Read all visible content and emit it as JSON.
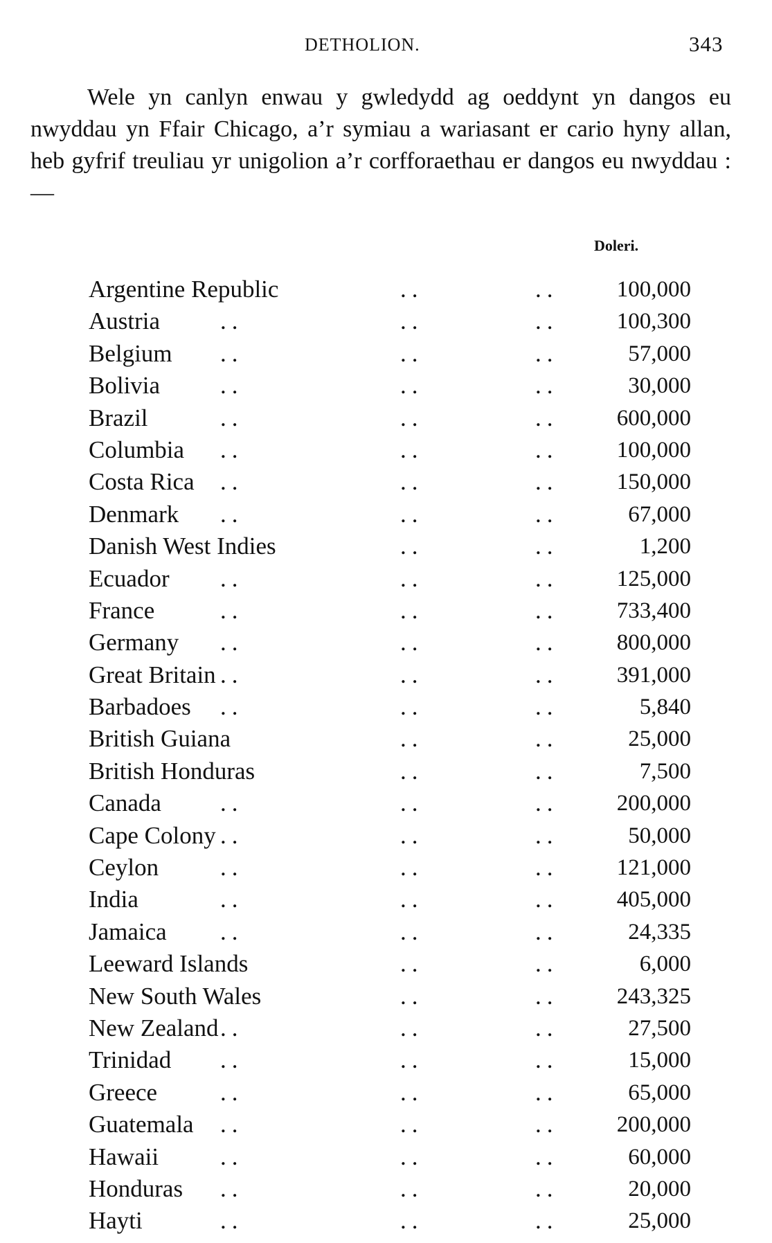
{
  "header": {
    "title": "DETHOLION.",
    "page_number": "343"
  },
  "intro": "Wele yn canlyn enwau y gwledydd ag oeddynt yn dangos eu nwyddau yn Ffair Chicago, a’r symiau a wariasant er cario hyny allan, heb gyfrif treuliau yr unigolion a’r corfforaethau er dangos eu nwyddau :—",
  "table": {
    "unit_header": "Doleri.",
    "leader": "..",
    "rows": [
      {
        "country": "Argentine Republic",
        "amount": "100,000",
        "short": false
      },
      {
        "country": "Austria",
        "amount": "100,300",
        "short": true
      },
      {
        "country": "Belgium",
        "amount": "57,000",
        "short": true
      },
      {
        "country": "Bolivia",
        "amount": "30,000",
        "short": true
      },
      {
        "country": "Brazil",
        "amount": "600,000",
        "short": true
      },
      {
        "country": "Columbia",
        "amount": "100,000",
        "short": true
      },
      {
        "country": "Costa Rica",
        "amount": "150,000",
        "short": true
      },
      {
        "country": "Denmark",
        "amount": "67,000",
        "short": true
      },
      {
        "country": "Danish West Indies",
        "amount": "1,200",
        "short": false
      },
      {
        "country": "Ecuador",
        "amount": "125,000",
        "short": true
      },
      {
        "country": "France",
        "amount": "733,400",
        "short": true
      },
      {
        "country": "Germany",
        "amount": "800,000",
        "short": true
      },
      {
        "country": "Great Britain",
        "amount": "391,000",
        "short": true
      },
      {
        "country": "Barbadoes",
        "amount": "5,840",
        "short": true
      },
      {
        "country": "British Guiana",
        "amount": "25,000",
        "short": false
      },
      {
        "country": "British Honduras",
        "amount": "7,500",
        "short": false
      },
      {
        "country": "Canada",
        "amount": "200,000",
        "short": true
      },
      {
        "country": "Cape Colony",
        "amount": "50,000",
        "short": true
      },
      {
        "country": "Ceylon",
        "amount": "121,000",
        "short": true
      },
      {
        "country": "India",
        "amount": "405,000",
        "short": true
      },
      {
        "country": "Jamaica",
        "amount": "24,335",
        "short": true
      },
      {
        "country": "Leeward Islands",
        "amount": "6,000",
        "short": false
      },
      {
        "country": "New South Wales",
        "amount": "243,325",
        "short": false
      },
      {
        "country": "New Zealand",
        "amount": "27,500",
        "short": true
      },
      {
        "country": "Trinidad",
        "amount": "15,000",
        "short": true
      },
      {
        "country": "Greece",
        "amount": "65,000",
        "short": true
      },
      {
        "country": "Guatemala",
        "amount": "200,000",
        "short": true
      },
      {
        "country": "Hawaii",
        "amount": "60,000",
        "short": true
      },
      {
        "country": "Honduras",
        "amount": "20,000",
        "short": true
      },
      {
        "country": "Hayti",
        "amount": "25,000",
        "short": true
      }
    ]
  }
}
